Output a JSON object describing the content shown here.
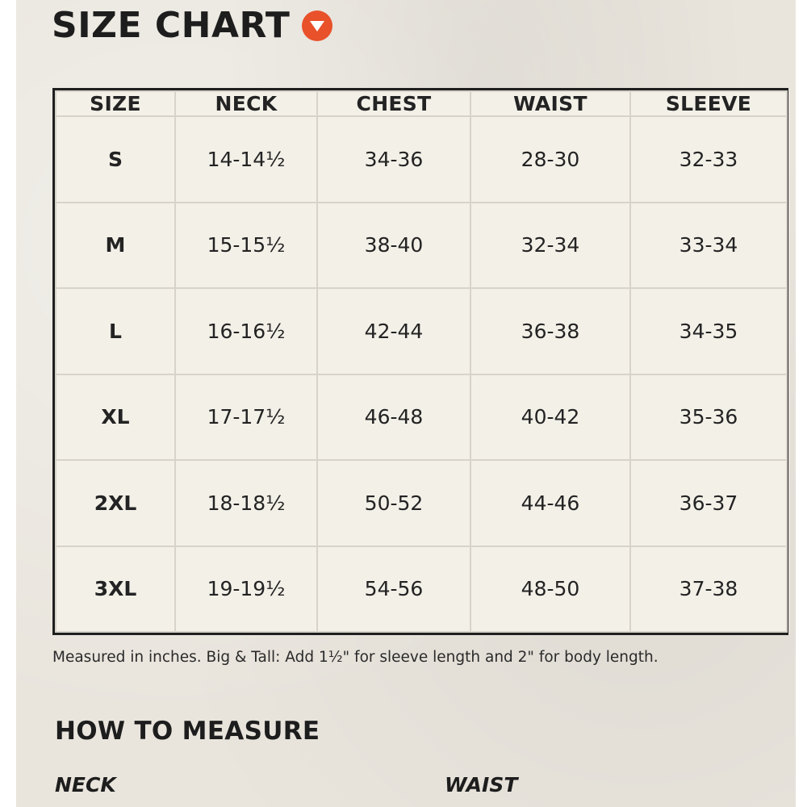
{
  "header": {
    "title": "SIZE CHART",
    "icon": "chevron-down-circle-icon",
    "accent_color": "#e8512a"
  },
  "size_table": {
    "columns": [
      "SIZE",
      "NECK",
      "CHEST",
      "WAIST",
      "SLEEVE"
    ],
    "rows": [
      [
        "S",
        "14-14½",
        "34-36",
        "28-30",
        "32-33"
      ],
      [
        "M",
        "15-15½",
        "38-40",
        "32-34",
        "33-34"
      ],
      [
        "L",
        "16-16½",
        "42-44",
        "36-38",
        "34-35"
      ],
      [
        "XL",
        "17-17½",
        "46-48",
        "40-42",
        "35-36"
      ],
      [
        "2XL",
        "18-18½",
        "50-52",
        "44-46",
        "36-37"
      ],
      [
        "3XL",
        "19-19½",
        "54-56",
        "48-50",
        "37-38"
      ]
    ]
  },
  "note": "Measured in inches. Big & Tall: Add 1½\" for sleeve length and 2\" for body length.",
  "how_to_measure": {
    "heading": "HOW TO MEASURE",
    "items": [
      "NECK",
      "WAIST"
    ]
  }
}
